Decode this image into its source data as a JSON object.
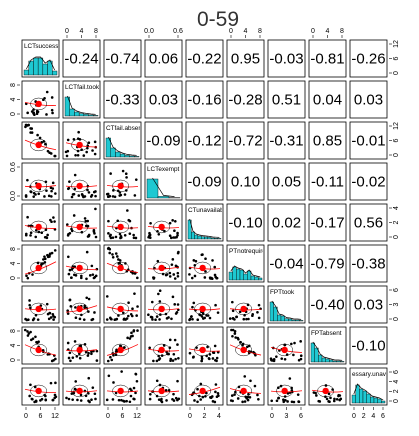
{
  "chart_data": {
    "type": "scatter-matrix",
    "title": "0-59",
    "variables": [
      "LCTsuccess",
      "LCTfail.took",
      "CTfail.absent",
      "LCTexempt",
      "CTunavailabl",
      "PTnotrequire",
      "FPTtook",
      "FPTabsent",
      "essary.unava"
    ],
    "correlations": [
      [
        null,
        "-0.24",
        "-0.74",
        "0.06",
        "-0.22",
        "0.95",
        "-0.03",
        "-0.81",
        "-0.26"
      ],
      [
        null,
        null,
        "-0.33",
        "0.03",
        "-0.16",
        "-0.28",
        "0.51",
        "0.04",
        "0.03"
      ],
      [
        null,
        null,
        null,
        "-0.09",
        "-0.12",
        "-0.72",
        "-0.31",
        "0.85",
        "-0.01"
      ],
      [
        null,
        null,
        null,
        null,
        "-0.09",
        "0.10",
        "0.05",
        "-0.11",
        "-0.02"
      ],
      [
        null,
        null,
        null,
        null,
        null,
        "-0.10",
        "0.02",
        "-0.17",
        "0.56"
      ],
      [
        null,
        null,
        null,
        null,
        null,
        null,
        "-0.04",
        "-0.79",
        "-0.38"
      ],
      [
        null,
        null,
        null,
        null,
        null,
        null,
        null,
        "-0.40",
        "0.03"
      ],
      [
        null,
        null,
        null,
        null,
        null,
        null,
        null,
        null,
        "-0.10"
      ]
    ],
    "histograms": [
      [
        0.25,
        0.7,
        0.85,
        0.85,
        0.55,
        0.7,
        0.2
      ],
      [
        0.95,
        0.35,
        0.2,
        0.12,
        0.08,
        0.05,
        0.03
      ],
      [
        0.95,
        0.45,
        0.25,
        0.15,
        0.08,
        0.05,
        0.03
      ],
      [
        0.95,
        0.08,
        0.02
      ],
      [
        0.95,
        0.35,
        0.2,
        0.15,
        0.12,
        0.1,
        0.08,
        0.05,
        0.04,
        0.03
      ],
      [
        0.4,
        0.65,
        0.55,
        0.5,
        0.3,
        0.45,
        0.2,
        0.15,
        0.1
      ],
      [
        0.95,
        0.7,
        0.3,
        0.25,
        0.12,
        0.1,
        0.05,
        0.05,
        0.03
      ],
      [
        0.95,
        0.7,
        0.35,
        0.2,
        0.15,
        0.1,
        0.05,
        0.05,
        0.03
      ],
      [
        0.4,
        0.9,
        0.7,
        0.6,
        0.45,
        0.3,
        0.25,
        0.2,
        0.1
      ]
    ],
    "axis_ticks": {
      "top": [
        {
          "col": 1,
          "labels": [
            "0",
            "4",
            "8"
          ]
        },
        {
          "col": 3,
          "labels": [
            "0.0",
            "0.6"
          ]
        },
        {
          "col": 5,
          "labels": [
            "0",
            "4",
            "8"
          ]
        },
        {
          "col": 7,
          "labels": [
            "0",
            "4",
            "8"
          ]
        }
      ],
      "bottom": [
        {
          "col": 0,
          "labels": [
            "0",
            "6",
            "12"
          ]
        },
        {
          "col": 2,
          "labels": [
            "0",
            "6",
            "12"
          ]
        },
        {
          "col": 4,
          "labels": [
            "0",
            "2",
            "4"
          ]
        },
        {
          "col": 6,
          "labels": [
            "0",
            "3",
            "6"
          ]
        },
        {
          "col": 8,
          "labels": [
            "0",
            "2",
            "4",
            "6"
          ]
        }
      ],
      "left": [
        {
          "row": 1,
          "labels": [
            "0",
            "4",
            "8"
          ]
        },
        {
          "row": 3,
          "labels": [
            "0.0",
            "0.6"
          ]
        },
        {
          "row": 5,
          "labels": [
            "0",
            "4",
            "8"
          ]
        },
        {
          "row": 7,
          "labels": [
            "0",
            "4",
            "8"
          ]
        }
      ],
      "right": [
        {
          "row": 0,
          "labels": [
            "0",
            "6",
            "12"
          ]
        },
        {
          "row": 2,
          "labels": [
            "0",
            "6",
            "12"
          ]
        },
        {
          "row": 4,
          "labels": [
            "0",
            "2",
            "4"
          ]
        },
        {
          "row": 6,
          "labels": [
            "0",
            "3",
            "6"
          ]
        },
        {
          "row": 8,
          "labels": [
            "0",
            "2",
            "4",
            "6"
          ]
        }
      ]
    },
    "colors": {
      "hist": "#1ec8d2",
      "smooth": "#ff0000",
      "center": "#ff0000",
      "points": "#000000",
      "density": "#000000"
    }
  }
}
